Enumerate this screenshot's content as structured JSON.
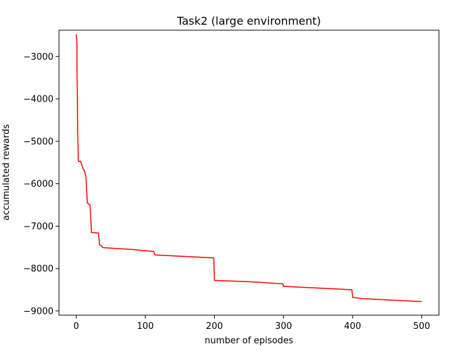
{
  "chart_data": {
    "type": "line",
    "title": "Task2 (large environment)",
    "xlabel": "number of episodes",
    "ylabel": "accumulated rewards",
    "xlim": [
      -25,
      525
    ],
    "ylim": [
      -9100,
      -2380
    ],
    "xticks": [
      0,
      100,
      200,
      300,
      400,
      500
    ],
    "yticks": [
      -3000,
      -4000,
      -5000,
      -6000,
      -7000,
      -8000,
      -9000
    ],
    "xtick_labels": [
      "0",
      "100",
      "200",
      "300",
      "400",
      "500"
    ],
    "ytick_labels": [
      "−3000",
      "−4000",
      "−5000",
      "−6000",
      "−7000",
      "−8000",
      "−9000"
    ],
    "grid": false,
    "series": [
      {
        "color": "#ff0000",
        "x": [
          0,
          1,
          1,
          2,
          2,
          3,
          4,
          6,
          8,
          10,
          12,
          14,
          16,
          18,
          20,
          22,
          24,
          26,
          28,
          30,
          32,
          34,
          36,
          38,
          40,
          60,
          80,
          100,
          112,
          114,
          150,
          199,
          200,
          250,
          299,
          300,
          350,
          399,
          400,
          415,
          450,
          500
        ],
        "y": [
          -2480,
          -2700,
          -3200,
          -4600,
          -4720,
          -5450,
          -5480,
          -5470,
          -5550,
          -5650,
          -5700,
          -5840,
          -6450,
          -6480,
          -6500,
          -7150,
          -7150,
          -7150,
          -7160,
          -7160,
          -7160,
          -7450,
          -7460,
          -7500,
          -7510,
          -7530,
          -7550,
          -7580,
          -7600,
          -7680,
          -7710,
          -7750,
          -8280,
          -8310,
          -8360,
          -8420,
          -8460,
          -8500,
          -8680,
          -8710,
          -8740,
          -8780
        ]
      }
    ]
  }
}
